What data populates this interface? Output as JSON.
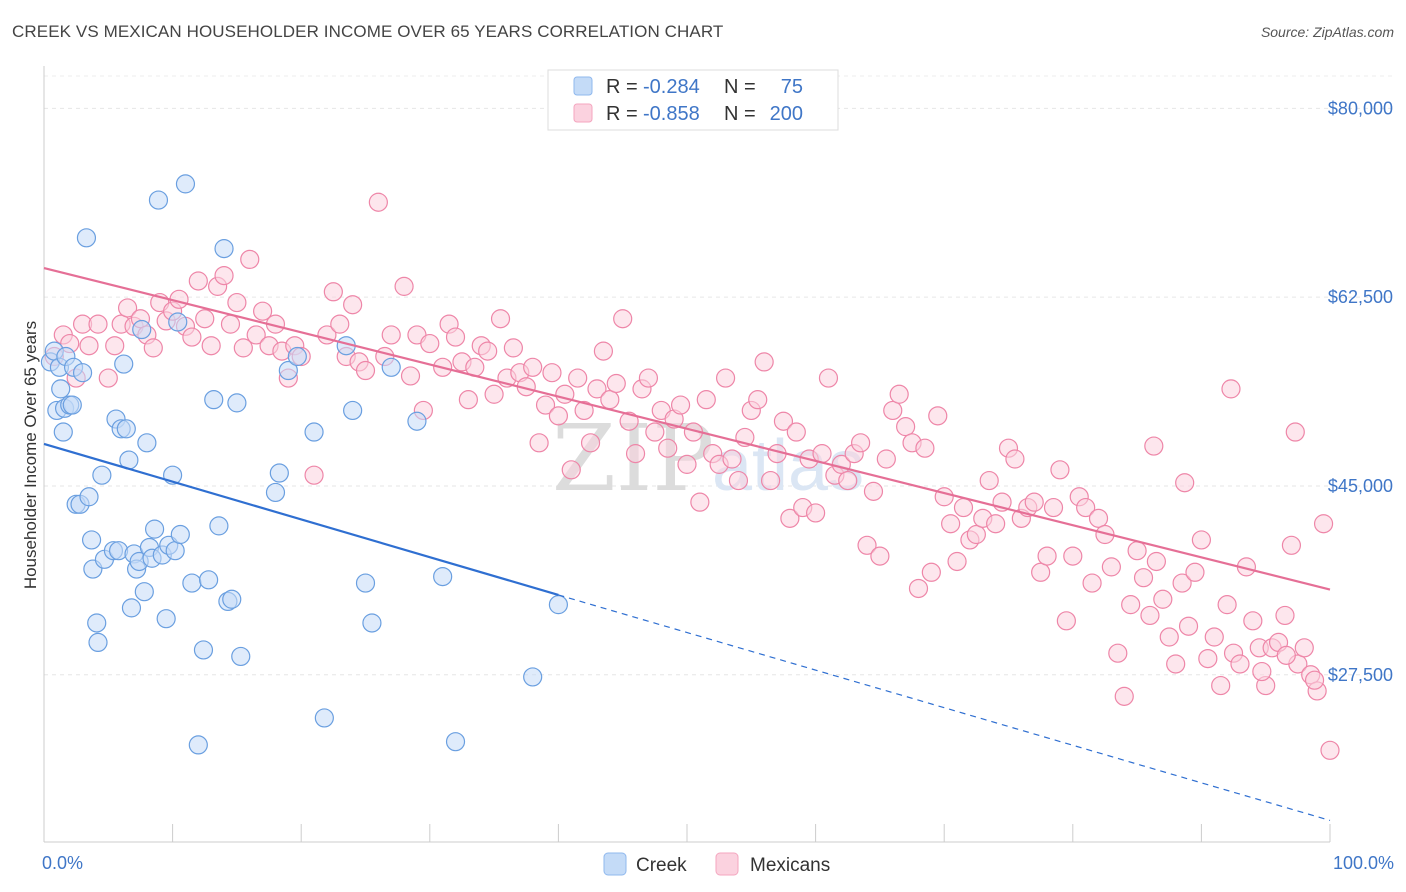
{
  "title": "CREEK VS MEXICAN HOUSEHOLDER INCOME OVER 65 YEARS CORRELATION CHART",
  "source": "Source: ZipAtlas.com",
  "watermark": {
    "part1": "ZIP",
    "part2": "atlas"
  },
  "legend": {
    "rows": [
      {
        "r_label": "R =",
        "r_value": "-0.284",
        "n_label": "N =",
        "n_value": "75",
        "color": "#8fb8ee"
      },
      {
        "r_label": "R =",
        "r_value": "-0.858",
        "n_label": "N =",
        "n_value": "200",
        "color": "#f4a6bf"
      }
    ]
  },
  "bottom_legend": {
    "series1": "Creek",
    "series2": "Mexicans"
  },
  "chart_data": {
    "type": "scatter",
    "title": "CREEK VS MEXICAN HOUSEHOLDER INCOME OVER 65 YEARS CORRELATION CHART",
    "xlabel": "",
    "ylabel": "Householder Income Over 65 years",
    "x_tick_labels": [
      "0.0%",
      "100.0%"
    ],
    "y_tick_labels": [
      "$80,000",
      "$62,500",
      "$45,000",
      "$27,500"
    ],
    "y_ticks": [
      80000,
      62500,
      45000,
      27500
    ],
    "xlim": [
      0,
      100
    ],
    "ylim": [
      12000,
      83000
    ],
    "grid": true,
    "legend_position": "top-center",
    "colors": {
      "creek": "#6a9fe0",
      "creek_fill": "#c4dbf7",
      "mexicans": "#ee86a8",
      "mexicans_fill": "#fbd2df",
      "creek_line": "#2f6fd1",
      "mexicans_line": "#e56f96"
    },
    "series": [
      {
        "name": "Creek",
        "trend": {
          "x0": 0,
          "y0": 48900,
          "x1": 40,
          "y1": 34900,
          "dashed_to_x": 100,
          "dashed_to_y": 14000
        },
        "points": [
          [
            0.5,
            56500
          ],
          [
            0.8,
            57500
          ],
          [
            1.2,
            56000
          ],
          [
            1.0,
            52000
          ],
          [
            1.3,
            54000
          ],
          [
            1.5,
            50000
          ],
          [
            1.6,
            52200
          ],
          [
            1.7,
            57000
          ],
          [
            2.0,
            52500
          ],
          [
            2.2,
            52500
          ],
          [
            2.3,
            56000
          ],
          [
            2.5,
            43300
          ],
          [
            2.8,
            43300
          ],
          [
            3.0,
            55500
          ],
          [
            3.3,
            68000
          ],
          [
            3.5,
            44000
          ],
          [
            3.7,
            40000
          ],
          [
            3.8,
            37300
          ],
          [
            4.1,
            32300
          ],
          [
            4.2,
            30500
          ],
          [
            4.5,
            46000
          ],
          [
            4.7,
            38200
          ],
          [
            5.4,
            39000
          ],
          [
            5.6,
            51200
          ],
          [
            5.8,
            39000
          ],
          [
            6.0,
            50300
          ],
          [
            6.2,
            56300
          ],
          [
            6.4,
            50300
          ],
          [
            6.6,
            47400
          ],
          [
            6.8,
            33700
          ],
          [
            7.0,
            38700
          ],
          [
            7.2,
            37300
          ],
          [
            7.4,
            38000
          ],
          [
            7.6,
            59500
          ],
          [
            7.8,
            35200
          ],
          [
            8.0,
            49000
          ],
          [
            8.2,
            39300
          ],
          [
            8.4,
            38300
          ],
          [
            8.6,
            41000
          ],
          [
            8.9,
            71500
          ],
          [
            9.2,
            38600
          ],
          [
            9.5,
            32700
          ],
          [
            9.7,
            39500
          ],
          [
            10.0,
            46000
          ],
          [
            10.2,
            39000
          ],
          [
            10.4,
            60200
          ],
          [
            10.6,
            40500
          ],
          [
            11.0,
            73000
          ],
          [
            11.5,
            36000
          ],
          [
            12.0,
            21000
          ],
          [
            12.4,
            29800
          ],
          [
            12.8,
            36300
          ],
          [
            13.2,
            53000
          ],
          [
            13.6,
            41300
          ],
          [
            14.0,
            67000
          ],
          [
            14.3,
            34300
          ],
          [
            14.6,
            34500
          ],
          [
            15.0,
            52700
          ],
          [
            15.3,
            29200
          ],
          [
            18.0,
            44400
          ],
          [
            18.3,
            46200
          ],
          [
            19.0,
            55700
          ],
          [
            19.7,
            57000
          ],
          [
            21.0,
            50000
          ],
          [
            21.8,
            23500
          ],
          [
            23.5,
            58000
          ],
          [
            24.0,
            52000
          ],
          [
            25.0,
            36000
          ],
          [
            25.5,
            32300
          ],
          [
            27.0,
            56000
          ],
          [
            29.0,
            51000
          ],
          [
            31.0,
            36600
          ],
          [
            32.0,
            21300
          ],
          [
            38.0,
            27300
          ],
          [
            40.0,
            34000
          ]
        ]
      },
      {
        "name": "Mexicans",
        "trend": {
          "x0": 0,
          "y0": 65200,
          "x1": 100,
          "y1": 35400
        },
        "points": [
          [
            0.8,
            57000
          ],
          [
            1.5,
            59000
          ],
          [
            2.0,
            58200
          ],
          [
            2.5,
            55000
          ],
          [
            3.0,
            60000
          ],
          [
            3.5,
            58000
          ],
          [
            4.2,
            60000
          ],
          [
            5.0,
            55000
          ],
          [
            5.5,
            58000
          ],
          [
            6.0,
            60000
          ],
          [
            6.5,
            61500
          ],
          [
            7.0,
            59800
          ],
          [
            7.5,
            60500
          ],
          [
            8.0,
            59000
          ],
          [
            8.5,
            57800
          ],
          [
            9.0,
            62000
          ],
          [
            9.5,
            60300
          ],
          [
            10.0,
            61200
          ],
          [
            10.5,
            62300
          ],
          [
            11.0,
            59800
          ],
          [
            11.5,
            58800
          ],
          [
            12.0,
            64000
          ],
          [
            12.5,
            60500
          ],
          [
            13.0,
            58000
          ],
          [
            13.5,
            63500
          ],
          [
            14.0,
            64500
          ],
          [
            14.5,
            60000
          ],
          [
            15.0,
            62000
          ],
          [
            15.5,
            57800
          ],
          [
            16.0,
            66000
          ],
          [
            16.5,
            59000
          ],
          [
            17.0,
            61200
          ],
          [
            17.5,
            58000
          ],
          [
            18.0,
            60000
          ],
          [
            18.5,
            57500
          ],
          [
            19.0,
            55000
          ],
          [
            19.5,
            58000
          ],
          [
            20.0,
            57000
          ],
          [
            21.0,
            46000
          ],
          [
            22.0,
            59000
          ],
          [
            22.5,
            63000
          ],
          [
            23.0,
            60000
          ],
          [
            23.5,
            57000
          ],
          [
            24.0,
            61800
          ],
          [
            24.5,
            56500
          ],
          [
            25.0,
            55700
          ],
          [
            26.0,
            71300
          ],
          [
            26.5,
            57000
          ],
          [
            27.0,
            59000
          ],
          [
            28.0,
            63500
          ],
          [
            28.5,
            55200
          ],
          [
            29.0,
            59000
          ],
          [
            29.5,
            52000
          ],
          [
            30.0,
            58200
          ],
          [
            31.0,
            56000
          ],
          [
            31.5,
            60000
          ],
          [
            32.0,
            58800
          ],
          [
            32.5,
            56500
          ],
          [
            33.0,
            53000
          ],
          [
            33.5,
            56000
          ],
          [
            34.0,
            58000
          ],
          [
            34.5,
            57500
          ],
          [
            35.0,
            53500
          ],
          [
            35.5,
            60500
          ],
          [
            36.0,
            55000
          ],
          [
            36.5,
            57800
          ],
          [
            37.0,
            55500
          ],
          [
            37.5,
            54200
          ],
          [
            38.0,
            56000
          ],
          [
            38.5,
            49000
          ],
          [
            39.0,
            52500
          ],
          [
            39.5,
            55500
          ],
          [
            40.0,
            51500
          ],
          [
            40.5,
            53500
          ],
          [
            41.0,
            46500
          ],
          [
            41.5,
            55000
          ],
          [
            42.0,
            52000
          ],
          [
            42.5,
            49000
          ],
          [
            43.0,
            54000
          ],
          [
            43.5,
            57500
          ],
          [
            44.0,
            53000
          ],
          [
            44.5,
            54500
          ],
          [
            45.0,
            60500
          ],
          [
            45.5,
            51000
          ],
          [
            46.0,
            48000
          ],
          [
            46.5,
            54000
          ],
          [
            47.0,
            55000
          ],
          [
            47.5,
            50000
          ],
          [
            48.0,
            52000
          ],
          [
            48.5,
            48500
          ],
          [
            49.0,
            51200
          ],
          [
            49.5,
            52500
          ],
          [
            50.0,
            47000
          ],
          [
            50.5,
            50000
          ],
          [
            51.0,
            43500
          ],
          [
            51.5,
            53000
          ],
          [
            52.0,
            48000
          ],
          [
            52.5,
            47000
          ],
          [
            53.0,
            55000
          ],
          [
            53.5,
            47500
          ],
          [
            54.0,
            45500
          ],
          [
            54.5,
            49500
          ],
          [
            55.0,
            52000
          ],
          [
            55.5,
            53000
          ],
          [
            56.0,
            56500
          ],
          [
            56.5,
            45500
          ],
          [
            57.0,
            48000
          ],
          [
            57.5,
            51000
          ],
          [
            58.0,
            42000
          ],
          [
            58.5,
            50000
          ],
          [
            59.0,
            43000
          ],
          [
            59.5,
            47500
          ],
          [
            60.0,
            42500
          ],
          [
            60.5,
            48000
          ],
          [
            61.0,
            55000
          ],
          [
            61.5,
            46000
          ],
          [
            62.0,
            47000
          ],
          [
            62.5,
            45500
          ],
          [
            63.0,
            48000
          ],
          [
            63.5,
            49000
          ],
          [
            64.0,
            39500
          ],
          [
            64.5,
            44500
          ],
          [
            65.0,
            38500
          ],
          [
            65.5,
            47500
          ],
          [
            66.0,
            52000
          ],
          [
            66.5,
            53500
          ],
          [
            67.0,
            50500
          ],
          [
            67.5,
            49000
          ],
          [
            68.0,
            35500
          ],
          [
            68.5,
            48500
          ],
          [
            69.0,
            37000
          ],
          [
            69.5,
            51500
          ],
          [
            70.0,
            44000
          ],
          [
            70.5,
            41500
          ],
          [
            71.0,
            38000
          ],
          [
            71.5,
            43000
          ],
          [
            72.0,
            40000
          ],
          [
            72.5,
            40500
          ],
          [
            73.0,
            42000
          ],
          [
            73.5,
            45500
          ],
          [
            74.0,
            41500
          ],
          [
            74.5,
            43500
          ],
          [
            75.0,
            48500
          ],
          [
            75.5,
            47500
          ],
          [
            76.0,
            42000
          ],
          [
            76.5,
            43000
          ],
          [
            77.0,
            43500
          ],
          [
            77.5,
            37000
          ],
          [
            78.0,
            38500
          ],
          [
            78.5,
            43000
          ],
          [
            79.0,
            46500
          ],
          [
            79.5,
            32500
          ],
          [
            80.0,
            38500
          ],
          [
            80.5,
            44000
          ],
          [
            81.0,
            43000
          ],
          [
            81.5,
            36000
          ],
          [
            82.0,
            42000
          ],
          [
            82.5,
            40500
          ],
          [
            83.0,
            37500
          ],
          [
            83.5,
            29500
          ],
          [
            84.0,
            25500
          ],
          [
            84.5,
            34000
          ],
          [
            85.0,
            39000
          ],
          [
            85.5,
            36500
          ],
          [
            86.0,
            33000
          ],
          [
            86.5,
            38000
          ],
          [
            87.0,
            34500
          ],
          [
            87.5,
            31000
          ],
          [
            88.0,
            28500
          ],
          [
            88.5,
            36000
          ],
          [
            89.0,
            32000
          ],
          [
            89.5,
            37000
          ],
          [
            90.0,
            40000
          ],
          [
            90.5,
            29000
          ],
          [
            91.0,
            31000
          ],
          [
            91.5,
            26500
          ],
          [
            92.0,
            34000
          ],
          [
            92.5,
            29500
          ],
          [
            93.0,
            28500
          ],
          [
            93.5,
            37500
          ],
          [
            94.0,
            32500
          ],
          [
            94.5,
            30000
          ],
          [
            95.0,
            26500
          ],
          [
            95.5,
            30000
          ],
          [
            96.0,
            30500
          ],
          [
            96.5,
            33000
          ],
          [
            97.0,
            39500
          ],
          [
            97.5,
            28500
          ],
          [
            98.0,
            30000
          ],
          [
            98.5,
            27500
          ],
          [
            99.0,
            26000
          ],
          [
            99.5,
            41500
          ],
          [
            100.0,
            20500
          ],
          [
            98.8,
            27000
          ],
          [
            97.3,
            50000
          ],
          [
            94.7,
            27800
          ],
          [
            96.6,
            29300
          ],
          [
            92.3,
            54000
          ],
          [
            88.7,
            45300
          ],
          [
            86.3,
            48700
          ]
        ]
      }
    ]
  }
}
